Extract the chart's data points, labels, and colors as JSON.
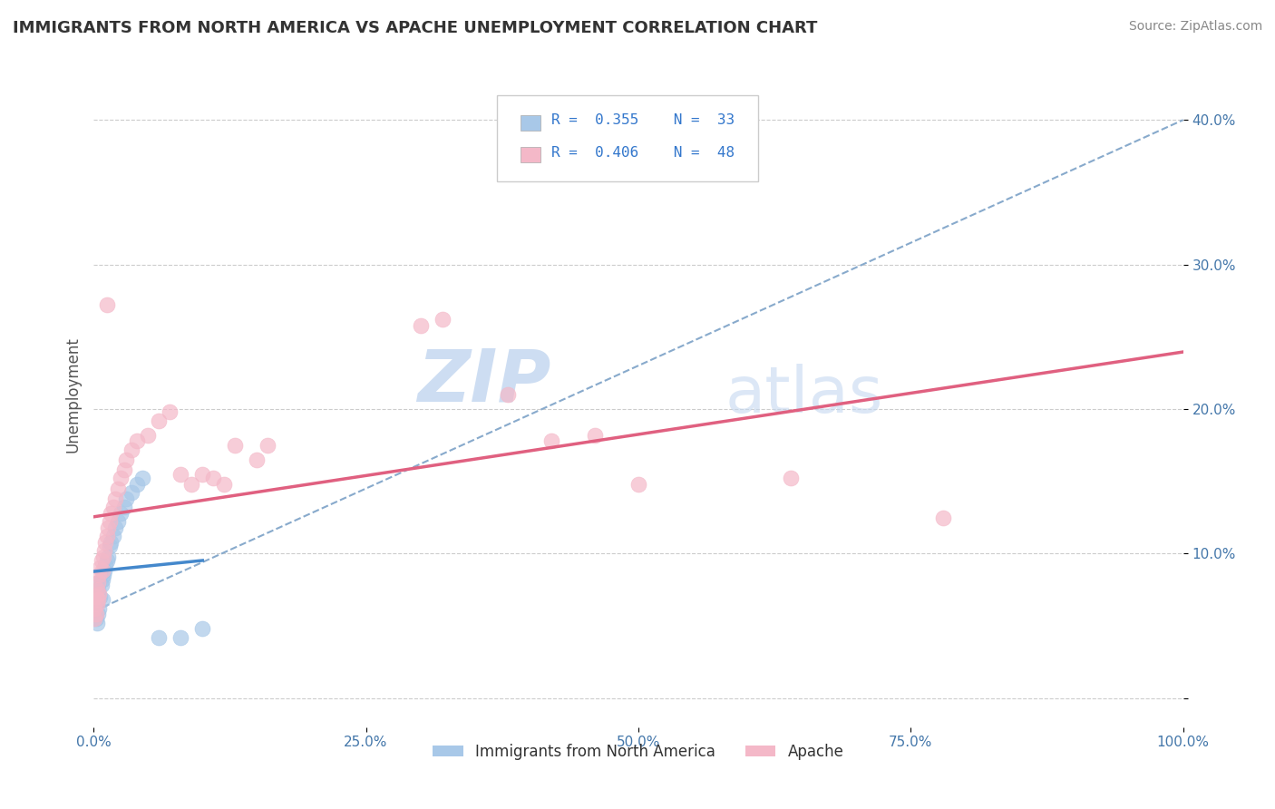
{
  "title": "IMMIGRANTS FROM NORTH AMERICA VS APACHE UNEMPLOYMENT CORRELATION CHART",
  "source": "Source: ZipAtlas.com",
  "ylabel": "Unemployment",
  "yticks": [
    0.0,
    0.1,
    0.2,
    0.3,
    0.4
  ],
  "ytick_labels": [
    "",
    "10.0%",
    "20.0%",
    "30.0%",
    "40.0%"
  ],
  "xticks": [
    0.0,
    0.25,
    0.5,
    0.75,
    1.0
  ],
  "xtick_labels": [
    "0.0%",
    "25.0%",
    "50.0%",
    "75.0%",
    "100.0%"
  ],
  "xlim": [
    0.0,
    1.0
  ],
  "ylim": [
    -0.02,
    0.44
  ],
  "legend_label1": "Immigrants from North America",
  "legend_label2": "Apache",
  "blue_color": "#a8c8e8",
  "pink_color": "#f4b8c8",
  "blue_line_color": "#4488cc",
  "pink_line_color": "#e06080",
  "dashed_line_color": "#88aacc",
  "blue_scatter": [
    [
      0.001,
      0.065
    ],
    [
      0.001,
      0.06
    ],
    [
      0.002,
      0.055
    ],
    [
      0.002,
      0.068
    ],
    [
      0.003,
      0.052
    ],
    [
      0.003,
      0.072
    ],
    [
      0.004,
      0.058
    ],
    [
      0.004,
      0.075
    ],
    [
      0.005,
      0.062
    ],
    [
      0.005,
      0.08
    ],
    [
      0.006,
      0.07
    ],
    [
      0.007,
      0.078
    ],
    [
      0.008,
      0.068
    ],
    [
      0.008,
      0.082
    ],
    [
      0.009,
      0.085
    ],
    [
      0.01,
      0.088
    ],
    [
      0.011,
      0.092
    ],
    [
      0.012,
      0.095
    ],
    [
      0.013,
      0.098
    ],
    [
      0.015,
      0.105
    ],
    [
      0.016,
      0.108
    ],
    [
      0.018,
      0.112
    ],
    [
      0.02,
      0.118
    ],
    [
      0.022,
      0.122
    ],
    [
      0.025,
      0.128
    ],
    [
      0.028,
      0.132
    ],
    [
      0.03,
      0.138
    ],
    [
      0.035,
      0.142
    ],
    [
      0.04,
      0.148
    ],
    [
      0.045,
      0.152
    ],
    [
      0.06,
      0.042
    ],
    [
      0.08,
      0.042
    ],
    [
      0.1,
      0.048
    ]
  ],
  "pink_scatter": [
    [
      0.001,
      0.055
    ],
    [
      0.001,
      0.062
    ],
    [
      0.002,
      0.058
    ],
    [
      0.002,
      0.07
    ],
    [
      0.003,
      0.065
    ],
    [
      0.003,
      0.075
    ],
    [
      0.004,
      0.068
    ],
    [
      0.004,
      0.08
    ],
    [
      0.005,
      0.072
    ],
    [
      0.005,
      0.085
    ],
    [
      0.006,
      0.09
    ],
    [
      0.007,
      0.095
    ],
    [
      0.008,
      0.088
    ],
    [
      0.009,
      0.098
    ],
    [
      0.01,
      0.102
    ],
    [
      0.011,
      0.108
    ],
    [
      0.012,
      0.112
    ],
    [
      0.013,
      0.118
    ],
    [
      0.015,
      0.122
    ],
    [
      0.016,
      0.128
    ],
    [
      0.018,
      0.132
    ],
    [
      0.02,
      0.138
    ],
    [
      0.022,
      0.145
    ],
    [
      0.025,
      0.152
    ],
    [
      0.028,
      0.158
    ],
    [
      0.03,
      0.165
    ],
    [
      0.035,
      0.172
    ],
    [
      0.04,
      0.178
    ],
    [
      0.012,
      0.272
    ],
    [
      0.05,
      0.182
    ],
    [
      0.06,
      0.192
    ],
    [
      0.07,
      0.198
    ],
    [
      0.08,
      0.155
    ],
    [
      0.09,
      0.148
    ],
    [
      0.1,
      0.155
    ],
    [
      0.11,
      0.152
    ],
    [
      0.12,
      0.148
    ],
    [
      0.13,
      0.175
    ],
    [
      0.15,
      0.165
    ],
    [
      0.16,
      0.175
    ],
    [
      0.3,
      0.258
    ],
    [
      0.32,
      0.262
    ],
    [
      0.38,
      0.21
    ],
    [
      0.42,
      0.178
    ],
    [
      0.46,
      0.182
    ],
    [
      0.5,
      0.148
    ],
    [
      0.64,
      0.152
    ],
    [
      0.78,
      0.125
    ]
  ],
  "watermark_zip": "ZIP",
  "watermark_atlas": "atlas",
  "background_color": "#ffffff",
  "grid_color": "#cccccc"
}
